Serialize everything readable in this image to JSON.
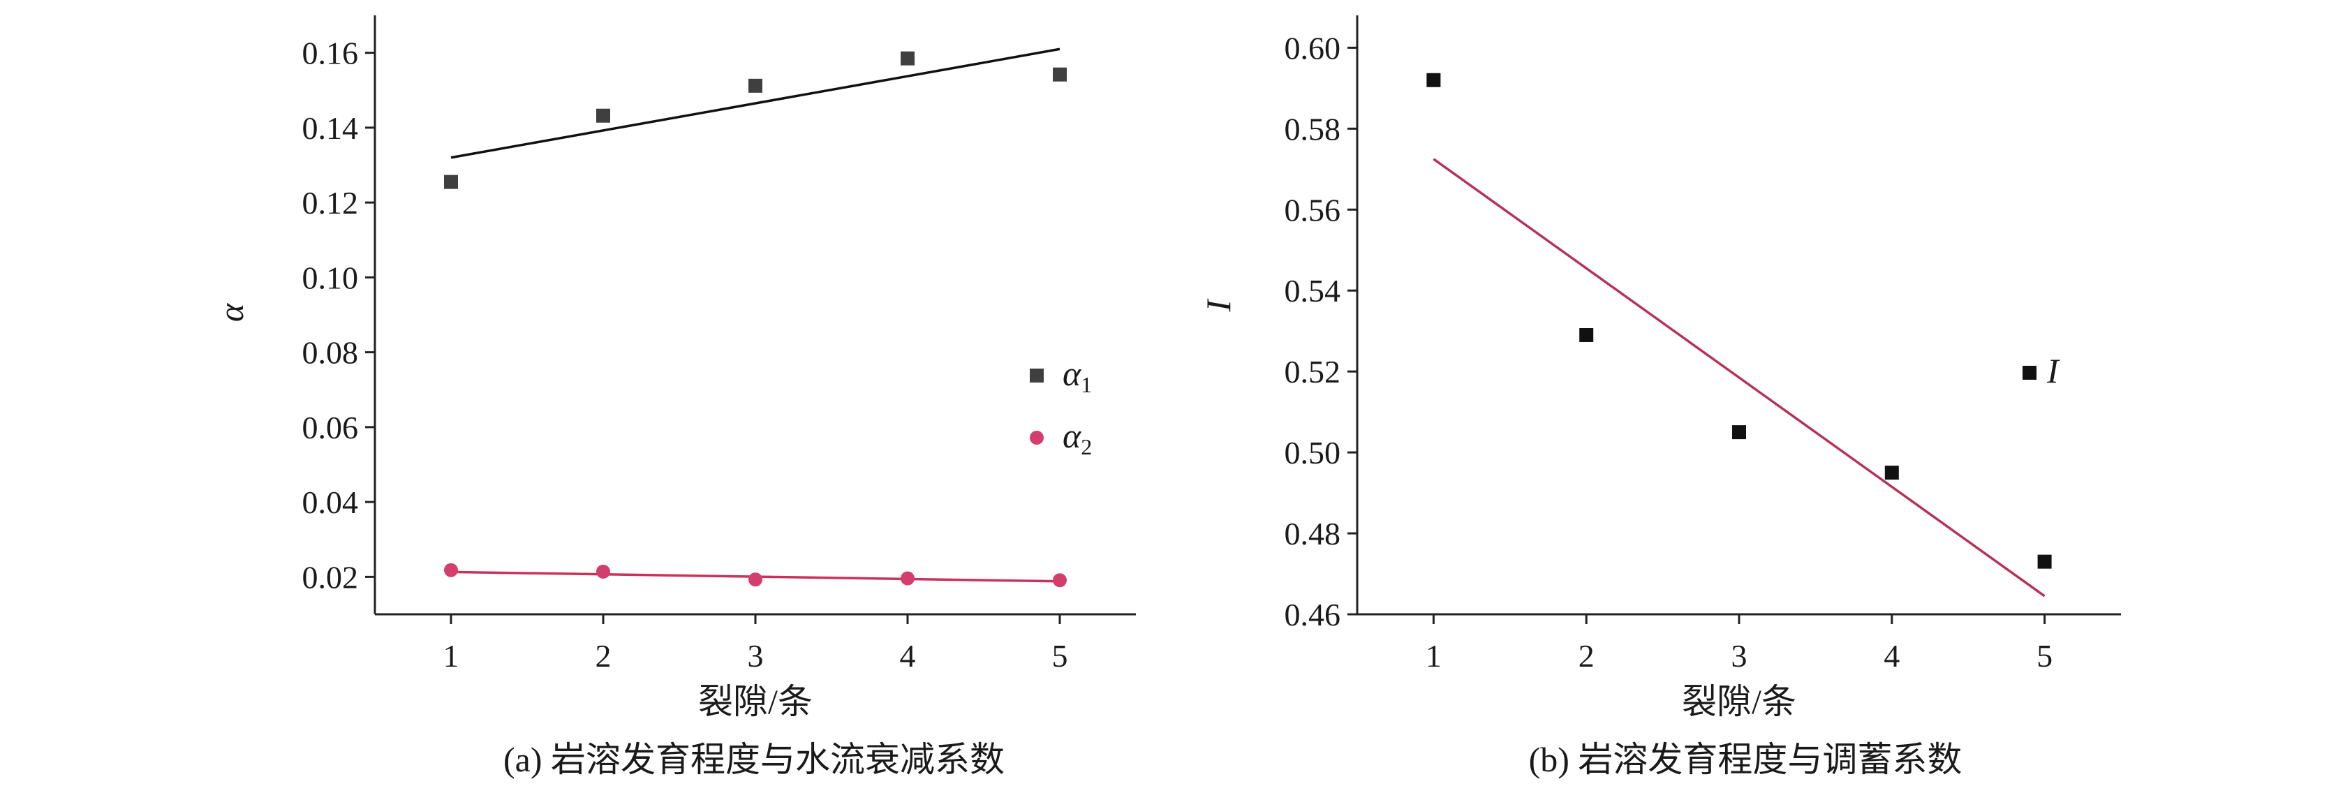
{
  "chart_data": [
    {
      "type": "scatter",
      "caption": "(a) 岩溶发育程度与水流衰减系数",
      "xlabel": "裂隙/条",
      "ylabel": "α",
      "xlim": [
        0.5,
        5.5
      ],
      "ylim": [
        0.01,
        0.17
      ],
      "xticks": [
        1,
        2,
        3,
        4,
        5
      ],
      "yticks": [
        0.02,
        0.04,
        0.06,
        0.08,
        0.1,
        0.12,
        0.14,
        0.16
      ],
      "ytick_labels": [
        "0.02",
        "0.04",
        "0.06",
        "0.08",
        "0.10",
        "0.12",
        "0.14",
        "0.16"
      ],
      "legend_position": "right",
      "grid": false,
      "series": [
        {
          "name": "α",
          "subscript": "1",
          "marker": "square",
          "color": "#3f3f3f",
          "x": [
            1,
            2,
            3,
            4,
            5
          ],
          "y": [
            0.1255,
            0.1432,
            0.1512,
            0.1585,
            0.1542
          ],
          "fit": {
            "x": [
              1,
              5
            ],
            "y": [
              0.132,
              0.161
            ],
            "color": "#111111"
          }
        },
        {
          "name": "α",
          "subscript": "2",
          "marker": "circle",
          "color": "#d33e6c",
          "x": [
            1,
            2,
            3,
            4,
            5
          ],
          "y": [
            0.0218,
            0.0214,
            0.0193,
            0.0196,
            0.0191
          ],
          "fit": {
            "x": [
              1,
              5
            ],
            "y": [
              0.0213,
              0.0188
            ],
            "color": "#c8325e"
          }
        }
      ]
    },
    {
      "type": "scatter",
      "caption": "(b) 岩溶发育程度与调蓄系数",
      "xlabel": "裂隙/条",
      "ylabel": "I",
      "xlim": [
        0.5,
        5.5
      ],
      "ylim": [
        0.46,
        0.608
      ],
      "xticks": [
        1,
        2,
        3,
        4,
        5
      ],
      "yticks": [
        0.46,
        0.48,
        0.5,
        0.52,
        0.54,
        0.56,
        0.58,
        0.6
      ],
      "ytick_labels": [
        "0.46",
        "0.48",
        "0.50",
        "0.52",
        "0.54",
        "0.56",
        "0.58",
        "0.60"
      ],
      "legend_position": "right",
      "grid": false,
      "series": [
        {
          "name": "I",
          "marker": "square",
          "color": "#111111",
          "x": [
            1,
            2,
            3,
            4,
            5
          ],
          "y": [
            0.592,
            0.529,
            0.505,
            0.495,
            0.473
          ],
          "fit": {
            "x": [
              1,
              5
            ],
            "y": [
              0.5725,
              0.4645
            ],
            "color": "#b6325a"
          }
        }
      ]
    }
  ]
}
